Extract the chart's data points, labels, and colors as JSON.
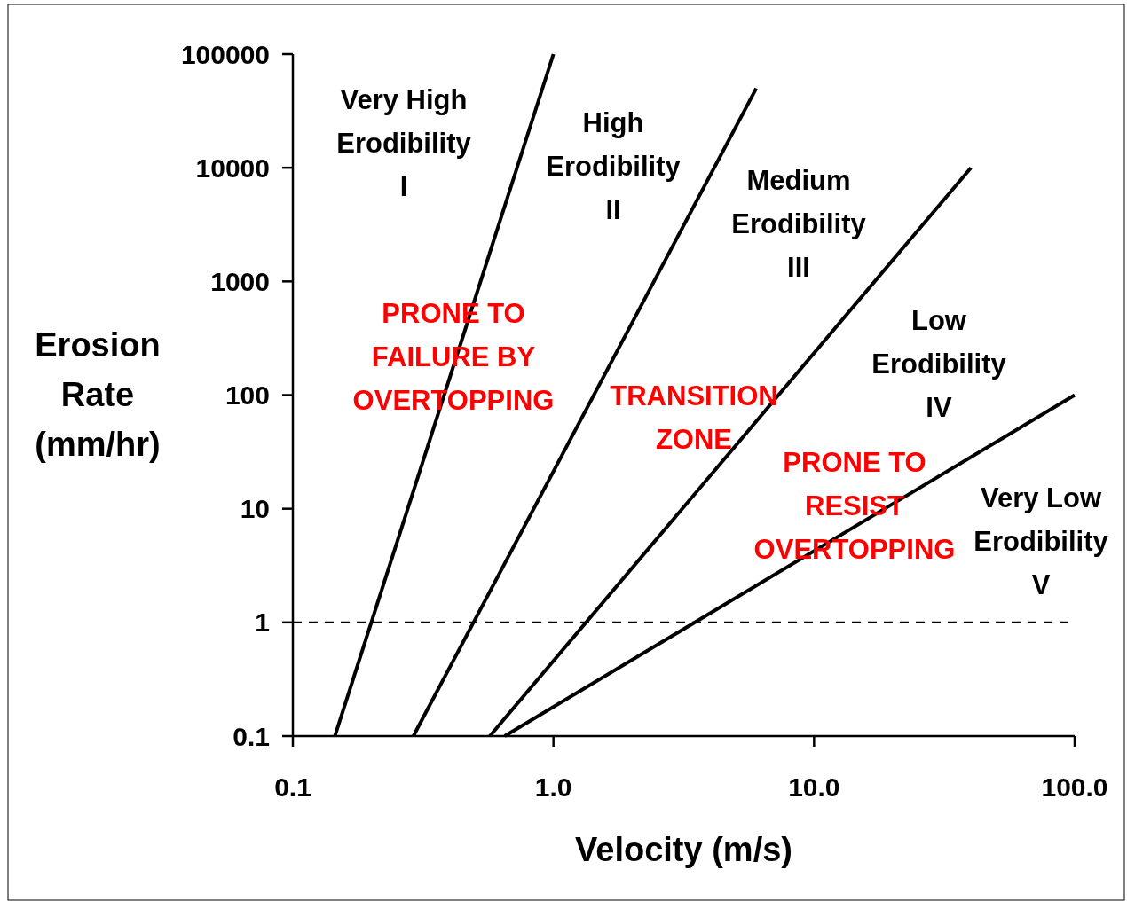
{
  "chart_data": {
    "type": "line",
    "xlabel": "Velocity (m/s)",
    "ylabel": "Erosion\nRate\n(mm/hr)",
    "log": "xy",
    "grid": false,
    "xlim": [
      0.1,
      100
    ],
    "ylim": [
      0.1,
      100000
    ],
    "xticks": [
      {
        "value": 0.1,
        "label": "0.1"
      },
      {
        "value": 1,
        "label": "1.0"
      },
      {
        "value": 10,
        "label": "10.0"
      },
      {
        "value": 100,
        "label": "100.0"
      }
    ],
    "yticks": [
      0.1,
      1,
      10,
      100,
      1000,
      10000,
      100000
    ],
    "series": [
      {
        "color": "#000000",
        "x": [
          0.145,
          1.0
        ],
        "values": [
          0.1,
          100000
        ]
      },
      {
        "color": "#000000",
        "x": [
          0.29,
          6.0
        ],
        "values": [
          0.1,
          50000
        ]
      },
      {
        "color": "#000000",
        "x": [
          0.57,
          40
        ],
        "values": [
          0.1,
          10000
        ]
      },
      {
        "color": "#000000",
        "x": [
          0.65,
          100
        ],
        "values": [
          0.1,
          100
        ]
      }
    ],
    "ref_lines": [
      {
        "axis": "y",
        "value": 1,
        "color": "#000000",
        "line_style": "dashed"
      }
    ],
    "annotations": [
      "Very High\nErodibility\nI",
      "High\nErodibility\nII",
      "Medium\nErodibility\nIII",
      "Low\nErodibility\nIV",
      "Very Low\nErodibility\nV",
      "PRONE TO\nFAILURE BY\nOVERTOPPING",
      "TRANSITION\nZONE",
      "PRONE TO\nRESIST\nOVERTOPPING"
    ]
  }
}
